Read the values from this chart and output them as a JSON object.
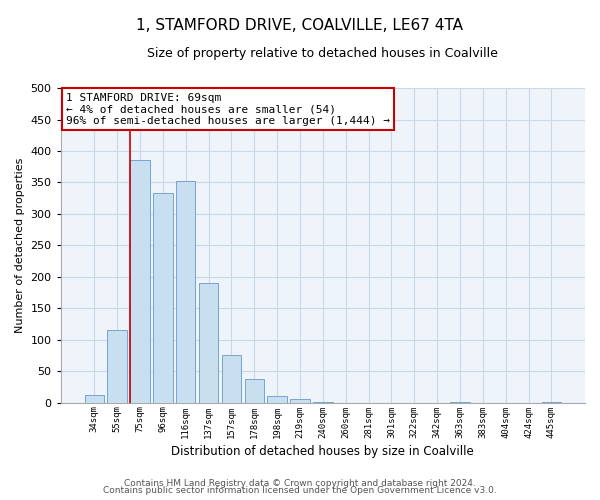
{
  "title": "1, STAMFORD DRIVE, COALVILLE, LE67 4TA",
  "subtitle": "Size of property relative to detached houses in Coalville",
  "xlabel": "Distribution of detached houses by size in Coalville",
  "ylabel": "Number of detached properties",
  "bar_labels": [
    "34sqm",
    "55sqm",
    "75sqm",
    "96sqm",
    "116sqm",
    "137sqm",
    "157sqm",
    "178sqm",
    "198sqm",
    "219sqm",
    "240sqm",
    "260sqm",
    "281sqm",
    "301sqm",
    "322sqm",
    "342sqm",
    "363sqm",
    "383sqm",
    "404sqm",
    "424sqm",
    "445sqm"
  ],
  "bar_values": [
    12,
    115,
    385,
    333,
    352,
    190,
    76,
    38,
    10,
    5,
    1,
    0,
    0,
    0,
    0,
    0,
    1,
    0,
    0,
    0,
    1
  ],
  "bar_color": "#c8dff0",
  "bar_edge_color": "#6699cc",
  "ylim": [
    0,
    500
  ],
  "yticks": [
    0,
    50,
    100,
    150,
    200,
    250,
    300,
    350,
    400,
    450,
    500
  ],
  "annotation_title": "1 STAMFORD DRIVE: 69sqm",
  "annotation_line1": "← 4% of detached houses are smaller (54)",
  "annotation_line2": "96% of semi-detached houses are larger (1,444) →",
  "annotation_box_color": "#ffffff",
  "annotation_box_edge": "#cc0000",
  "property_vline_color": "#cc0000",
  "grid_color": "#c8d8e8",
  "footer1": "Contains HM Land Registry data © Crown copyright and database right 2024.",
  "footer2": "Contains public sector information licensed under the Open Government Licence v3.0.",
  "bg_color": "#ffffff",
  "plot_bg_color": "#eef4fa"
}
